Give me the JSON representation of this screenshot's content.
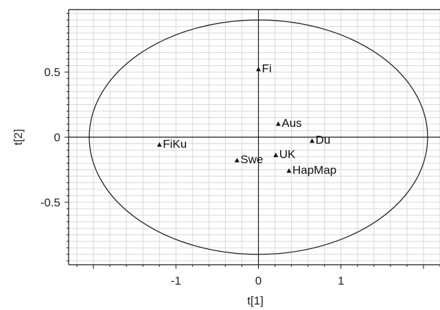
{
  "chart_data": {
    "type": "scatter",
    "title": "",
    "xlabel": "t[1]",
    "ylabel": "t[2]",
    "xlim": [
      -2.3,
      2.2
    ],
    "ylim": [
      -0.98,
      0.98
    ],
    "x_ticks": [
      -1,
      0,
      1
    ],
    "x_tick_labels": [
      "-1",
      "0",
      "1"
    ],
    "y_ticks": [
      -0.5,
      0,
      0.5
    ],
    "y_tick_labels": [
      "-0.5",
      "0",
      "0.5"
    ],
    "grid": true,
    "confidence_ellipse": {
      "cx": 0,
      "cy": 0,
      "rx": 2.05,
      "ry": 0.9
    },
    "points": [
      {
        "label": "Fi",
        "x": 0.0,
        "y": 0.52
      },
      {
        "label": "Aus",
        "x": 0.24,
        "y": 0.1
      },
      {
        "label": "Du",
        "x": 0.65,
        "y": -0.03
      },
      {
        "label": "FiKu",
        "x": -1.2,
        "y": -0.06
      },
      {
        "label": "UK",
        "x": 0.21,
        "y": -0.14
      },
      {
        "label": "Swe",
        "x": -0.26,
        "y": -0.18
      },
      {
        "label": "HapMap",
        "x": 0.37,
        "y": -0.26
      }
    ]
  }
}
